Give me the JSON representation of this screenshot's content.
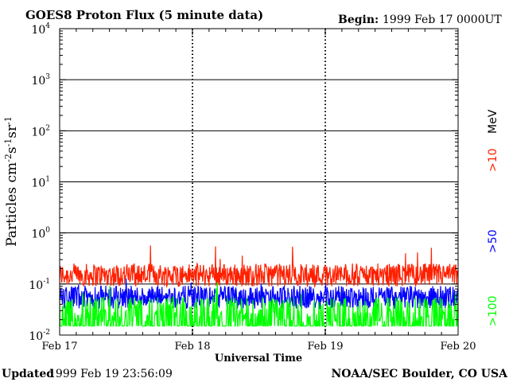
{
  "chart_data": {
    "type": "line",
    "title": "GOES8 Proton Flux (5 minute data)",
    "begin_label": "Begin:",
    "begin_value": "1999 Feb 17 0000UT",
    "xlabel": "Universal Time",
    "ylabel": "Particles cm",
    "ylabel_sup1": "-2",
    "ylabel_mid1": "s",
    "ylabel_sup2": "-1",
    "ylabel_mid2": "sr",
    "ylabel_sup3": "-1",
    "x_ticks": [
      "Feb 17",
      "Feb 18",
      "Feb 19",
      "Feb 20"
    ],
    "y_scale": "log",
    "ylim": [
      0.01,
      10000
    ],
    "y_ticks": [
      {
        "base": "10",
        "exp": "4"
      },
      {
        "base": "10",
        "exp": "3"
      },
      {
        "base": "10",
        "exp": "2"
      },
      {
        "base": "10",
        "exp": "1"
      },
      {
        "base": "10",
        "exp": "0"
      },
      {
        "base": "10",
        "exp": "-1"
      },
      {
        "base": "10",
        "exp": "-2"
      }
    ],
    "energy_unit": "MeV",
    "series": [
      {
        "name": ">10",
        "color": "#ff2000",
        "typical_flux": 0.15,
        "peak_flux": 0.6
      },
      {
        "name": ">50",
        "color": "#0000ff",
        "typical_flux": 0.055,
        "peak_flux": 0.2
      },
      {
        "name": ">100",
        "color": "#00ff00",
        "typical_flux": 0.025,
        "peak_flux": 0.12
      }
    ],
    "grid": true
  },
  "footer": {
    "updated_label": "Updated",
    "updated_value": "1999 Feb 19 23:56:09",
    "credit": "NOAA/SEC Boulder, CO USA"
  }
}
